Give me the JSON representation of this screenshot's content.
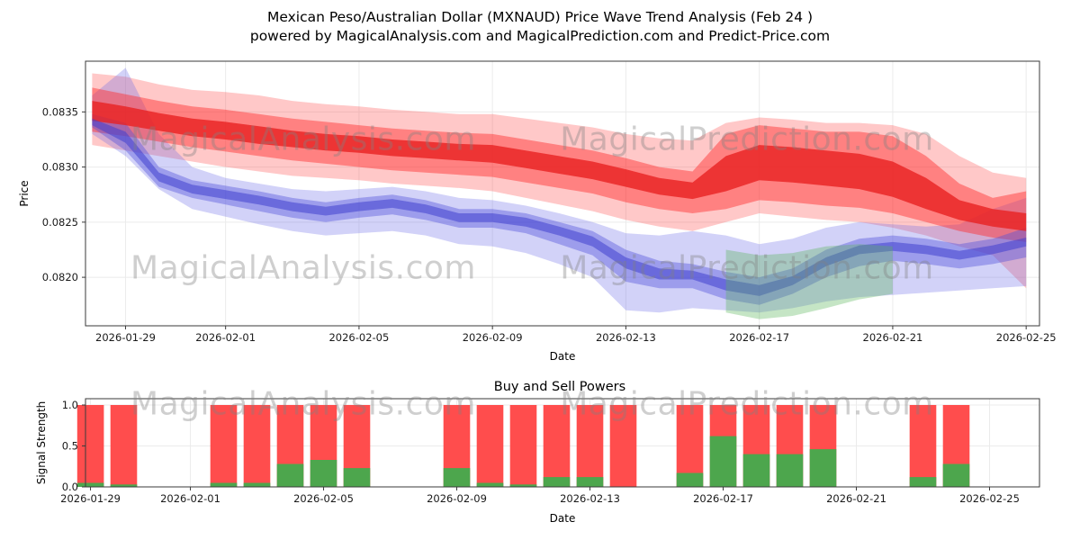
{
  "title": {
    "line1": "Mexican Peso/Australian Dollar (MXNAUD) Price Wave Trend Analysis (Feb 24 )",
    "line2": "powered by MagicalAnalysis.com and MagicalPrediction.com and Predict-Price.com"
  },
  "watermark": {
    "left": "MagicalAnalysis.com",
    "right": "MagicalPrediction.com"
  },
  "chart_data": [
    {
      "type": "area",
      "title": "",
      "xlabel": "Date",
      "ylabel": "Price",
      "grid": true,
      "x_ticks": [
        "2026-01-29",
        "2026-02-01",
        "2026-02-05",
        "2026-02-09",
        "2026-02-13",
        "2026-02-17",
        "2026-02-21",
        "2026-02-25"
      ],
      "y_ticks": [
        0.082,
        0.0825,
        0.083,
        0.0835
      ],
      "ylim": [
        0.08156,
        0.08396
      ],
      "xlim_days": [
        -0.2,
        28.4
      ],
      "dates": [
        "2026-01-28",
        "2026-01-29",
        "2026-01-30",
        "2026-01-31",
        "2026-02-01",
        "2026-02-02",
        "2026-02-03",
        "2026-02-04",
        "2026-02-05",
        "2026-02-06",
        "2026-02-07",
        "2026-02-08",
        "2026-02-09",
        "2026-02-10",
        "2026-02-11",
        "2026-02-12",
        "2026-02-13",
        "2026-02-14",
        "2026-02-15",
        "2026-02-16",
        "2026-02-17",
        "2026-02-18",
        "2026-02-19",
        "2026-02-20",
        "2026-02-21",
        "2026-02-22",
        "2026-02-23",
        "2026-02-24",
        "2026-02-25"
      ],
      "bands": [
        {
          "name": "trend-red-wide",
          "color": "#ff3b3b",
          "opacity": 0.28,
          "upper": [
            0.08385,
            0.08382,
            0.08375,
            0.0837,
            0.08368,
            0.08365,
            0.0836,
            0.08357,
            0.08355,
            0.08352,
            0.0835,
            0.08348,
            0.08348,
            0.08344,
            0.0834,
            0.08336,
            0.0833,
            0.08326,
            0.08324,
            0.0834,
            0.08345,
            0.08343,
            0.0834,
            0.0834,
            0.08338,
            0.0833,
            0.0831,
            0.08295,
            0.0829
          ],
          "lower": [
            0.0832,
            0.08315,
            0.0831,
            0.08305,
            0.083,
            0.08296,
            0.08292,
            0.0829,
            0.08288,
            0.08285,
            0.08283,
            0.08281,
            0.08278,
            0.08272,
            0.08266,
            0.0826,
            0.08252,
            0.08246,
            0.08242,
            0.0825,
            0.08258,
            0.08255,
            0.08252,
            0.0825,
            0.08245,
            0.08238,
            0.08228,
            0.0822,
            0.0819
          ]
        },
        {
          "name": "trend-blue-wide",
          "color": "#6b6be8",
          "opacity": 0.3,
          "upper": [
            0.08365,
            0.0839,
            0.0833,
            0.083,
            0.0829,
            0.08285,
            0.0828,
            0.08278,
            0.0828,
            0.08282,
            0.08278,
            0.08272,
            0.0827,
            0.08265,
            0.08258,
            0.0825,
            0.0824,
            0.08238,
            0.08242,
            0.08238,
            0.0823,
            0.08235,
            0.08245,
            0.0825,
            0.08248,
            0.08246,
            0.08248,
            0.08262,
            0.08272
          ],
          "lower": [
            0.0833,
            0.0831,
            0.0828,
            0.08262,
            0.08255,
            0.08248,
            0.08242,
            0.08238,
            0.0824,
            0.08242,
            0.08238,
            0.0823,
            0.08228,
            0.08222,
            0.08212,
            0.082,
            0.0817,
            0.08168,
            0.08172,
            0.0817,
            0.08168,
            0.08172,
            0.08178,
            0.08182,
            0.08184,
            0.08186,
            0.08188,
            0.0819,
            0.08192
          ]
        },
        {
          "name": "trend-red-mid",
          "color": "#ff2a2a",
          "opacity": 0.45,
          "upper": [
            0.08372,
            0.08366,
            0.0836,
            0.08355,
            0.08352,
            0.08348,
            0.08344,
            0.08341,
            0.08338,
            0.08335,
            0.08333,
            0.08331,
            0.0833,
            0.08325,
            0.0832,
            0.08315,
            0.08308,
            0.083,
            0.08296,
            0.0833,
            0.08338,
            0.08335,
            0.08332,
            0.08332,
            0.08328,
            0.0831,
            0.08285,
            0.08272,
            0.08278
          ],
          "lower": [
            0.08332,
            0.08328,
            0.08323,
            0.08318,
            0.08314,
            0.0831,
            0.08306,
            0.08303,
            0.083,
            0.08297,
            0.08295,
            0.08293,
            0.08291,
            0.08286,
            0.08281,
            0.08276,
            0.08268,
            0.08262,
            0.08258,
            0.08262,
            0.0827,
            0.08268,
            0.08265,
            0.08263,
            0.08258,
            0.0825,
            0.08242,
            0.08236,
            0.08232
          ]
        },
        {
          "name": "trend-blue-mid",
          "color": "#5353dc",
          "opacity": 0.42,
          "upper": [
            0.08348,
            0.0834,
            0.083,
            0.08288,
            0.08283,
            0.08278,
            0.08272,
            0.08268,
            0.08272,
            0.08275,
            0.0827,
            0.08262,
            0.08262,
            0.08258,
            0.0825,
            0.08242,
            0.08225,
            0.08215,
            0.08212,
            0.08205,
            0.082,
            0.08208,
            0.08225,
            0.08235,
            0.08238,
            0.08235,
            0.0823,
            0.08235,
            0.08245
          ],
          "lower": [
            0.08336,
            0.08315,
            0.08282,
            0.08272,
            0.08266,
            0.0826,
            0.08254,
            0.0825,
            0.08254,
            0.08257,
            0.08252,
            0.08245,
            0.08245,
            0.0824,
            0.0823,
            0.0822,
            0.08196,
            0.0819,
            0.0819,
            0.0818,
            0.08175,
            0.08185,
            0.082,
            0.0821,
            0.08215,
            0.08212,
            0.08208,
            0.08212,
            0.08218
          ]
        },
        {
          "name": "trend-red-core",
          "color": "#e81f1f",
          "opacity": 0.78,
          "upper": [
            0.0836,
            0.08355,
            0.08349,
            0.08344,
            0.08341,
            0.08337,
            0.08333,
            0.0833,
            0.08328,
            0.08325,
            0.08323,
            0.08321,
            0.0832,
            0.08315,
            0.0831,
            0.08305,
            0.08298,
            0.0829,
            0.08286,
            0.0831,
            0.0832,
            0.08318,
            0.08315,
            0.08312,
            0.08305,
            0.0829,
            0.0827,
            0.08262,
            0.08258
          ],
          "lower": [
            0.08342,
            0.08338,
            0.08333,
            0.08328,
            0.08325,
            0.08321,
            0.08318,
            0.08315,
            0.08313,
            0.0831,
            0.08308,
            0.08306,
            0.08304,
            0.08299,
            0.08294,
            0.08289,
            0.08282,
            0.08275,
            0.08271,
            0.08278,
            0.08288,
            0.08286,
            0.08283,
            0.0828,
            0.08273,
            0.08262,
            0.08252,
            0.08246,
            0.08242
          ]
        },
        {
          "name": "trend-blue-core",
          "color": "#3f3fd0",
          "opacity": 0.55,
          "upper": [
            0.08344,
            0.08332,
            0.08295,
            0.08284,
            0.08279,
            0.08274,
            0.08268,
            0.08264,
            0.08268,
            0.08271,
            0.08266,
            0.08258,
            0.08258,
            0.08254,
            0.08246,
            0.08237,
            0.08218,
            0.08208,
            0.08206,
            0.08198,
            0.08193,
            0.08201,
            0.08218,
            0.08229,
            0.08232,
            0.08229,
            0.08224,
            0.08229,
            0.08236
          ],
          "lower": [
            0.08338,
            0.08322,
            0.08287,
            0.08276,
            0.08271,
            0.08266,
            0.0826,
            0.08256,
            0.0826,
            0.08263,
            0.08258,
            0.0825,
            0.0825,
            0.08246,
            0.08238,
            0.08228,
            0.08208,
            0.08198,
            0.08198,
            0.08188,
            0.08183,
            0.08193,
            0.0821,
            0.08221,
            0.08224,
            0.08221,
            0.08216,
            0.08221,
            0.08228
          ]
        },
        {
          "name": "trend-green-patch",
          "color": "#5ab45a",
          "opacity": 0.35,
          "upper": [
            null,
            null,
            null,
            null,
            null,
            null,
            null,
            null,
            null,
            null,
            null,
            null,
            null,
            null,
            null,
            null,
            null,
            null,
            null,
            0.08225,
            0.0822,
            0.08222,
            0.08228,
            0.0823,
            0.08228,
            null,
            null,
            null,
            null
          ],
          "lower": [
            null,
            null,
            null,
            null,
            null,
            null,
            null,
            null,
            null,
            null,
            null,
            null,
            null,
            null,
            null,
            null,
            null,
            null,
            null,
            0.08168,
            0.08162,
            0.08165,
            0.08172,
            0.0818,
            0.08185,
            null,
            null,
            null,
            null
          ]
        }
      ]
    },
    {
      "type": "bar",
      "title": "Buy and Sell Powers",
      "xlabel": "Date",
      "ylabel": "Signal Strength",
      "grid": true,
      "x_ticks": [
        "2026-01-29",
        "2026-02-01",
        "2026-02-05",
        "2026-02-09",
        "2026-02-13",
        "2026-02-17",
        "2026-02-21",
        "2026-02-25"
      ],
      "y_ticks": [
        0.0,
        0.5,
        1.0
      ],
      "ylim": [
        0,
        1.077
      ],
      "xlim_days": [
        0.85,
        29.5
      ],
      "sell_color": "#ff4d4d",
      "buy_color": "#4da64d",
      "legend": [
        "sell-power-red",
        "buy-power-green"
      ],
      "bars": [
        {
          "date": "2026-01-29",
          "sell": 1.0,
          "buy": 0.05
        },
        {
          "date": "2026-01-30",
          "sell": 1.0,
          "buy": 0.03
        },
        {
          "date": "2026-02-02",
          "sell": 1.0,
          "buy": 0.05
        },
        {
          "date": "2026-02-03",
          "sell": 1.0,
          "buy": 0.05
        },
        {
          "date": "2026-02-04",
          "sell": 1.0,
          "buy": 0.28
        },
        {
          "date": "2026-02-05",
          "sell": 1.0,
          "buy": 0.33
        },
        {
          "date": "2026-02-06",
          "sell": 1.0,
          "buy": 0.23
        },
        {
          "date": "2026-02-09",
          "sell": 1.0,
          "buy": 0.23
        },
        {
          "date": "2026-02-10",
          "sell": 1.0,
          "buy": 0.05
        },
        {
          "date": "2026-02-11",
          "sell": 1.0,
          "buy": 0.03
        },
        {
          "date": "2026-02-12",
          "sell": 1.0,
          "buy": 0.12
        },
        {
          "date": "2026-02-13",
          "sell": 1.0,
          "buy": 0.12
        },
        {
          "date": "2026-02-14",
          "sell": 1.0,
          "buy": 0.0
        },
        {
          "date": "2026-02-16",
          "sell": 1.0,
          "buy": 0.17
        },
        {
          "date": "2026-02-17",
          "sell": 1.0,
          "buy": 0.62
        },
        {
          "date": "2026-02-18",
          "sell": 1.0,
          "buy": 0.4
        },
        {
          "date": "2026-02-19",
          "sell": 1.0,
          "buy": 0.4
        },
        {
          "date": "2026-02-20",
          "sell": 1.0,
          "buy": 0.46
        },
        {
          "date": "2026-02-23",
          "sell": 1.0,
          "buy": 0.12
        },
        {
          "date": "2026-02-24",
          "sell": 1.0,
          "buy": 0.28
        }
      ]
    }
  ]
}
